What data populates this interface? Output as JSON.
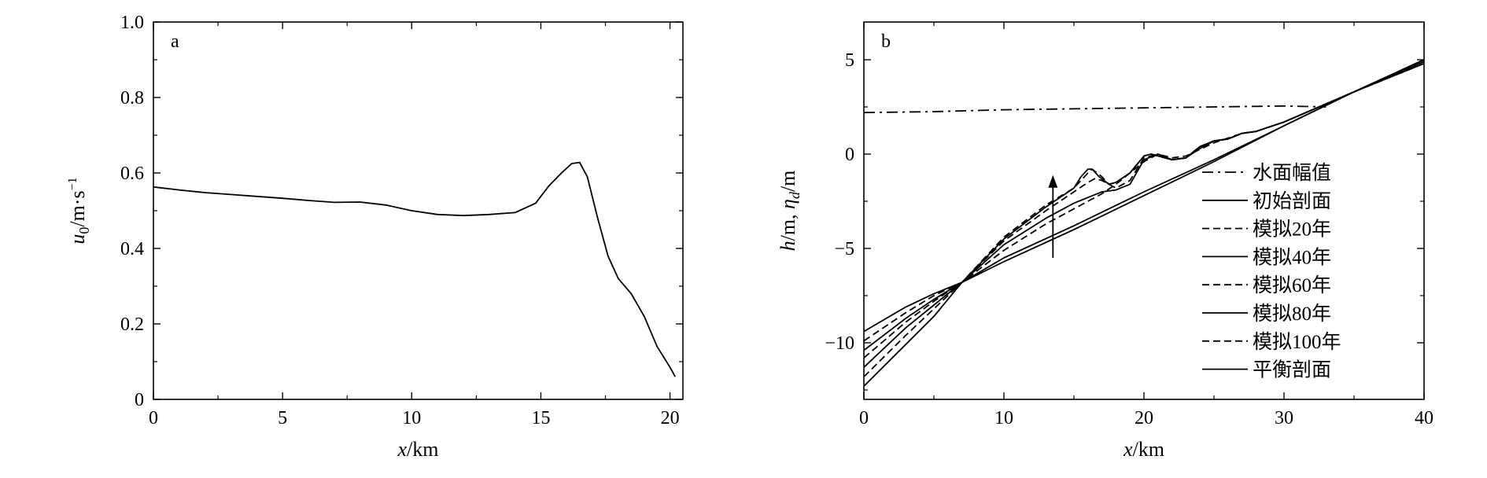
{
  "chart_data": [
    {
      "id": "a",
      "type": "line",
      "panel_label": "a",
      "xlabel": {
        "var": "x",
        "unit": "/km"
      },
      "ylabel": {
        "var": "u",
        "sub": "0",
        "unit": "/m·s",
        "sup": "−1"
      },
      "xlim": [
        0,
        20.5
      ],
      "ylim": [
        0,
        1.0
      ],
      "xticks": [
        0,
        5,
        10,
        15,
        20
      ],
      "xtick_labels": [
        "0",
        "5",
        "10",
        "15",
        "20"
      ],
      "yticks": [
        0,
        0.2,
        0.4,
        0.6,
        0.8,
        1.0
      ],
      "ytick_labels": [
        "0",
        "0.2",
        "0.4",
        "0.6",
        "0.8",
        "1.0"
      ],
      "series": [
        {
          "style": "solid",
          "x": [
            0,
            1,
            2,
            3,
            4,
            5,
            6,
            7,
            8,
            9,
            10,
            11,
            12,
            13,
            14,
            14.8,
            15.3,
            15.8,
            16.2,
            16.5,
            16.8,
            17.2,
            17.6,
            18.0,
            18.5,
            19.0,
            19.5,
            20.0,
            20.2
          ],
          "y": [
            0.563,
            0.555,
            0.548,
            0.543,
            0.538,
            0.533,
            0.527,
            0.522,
            0.523,
            0.515,
            0.5,
            0.49,
            0.487,
            0.49,
            0.495,
            0.52,
            0.565,
            0.6,
            0.625,
            0.628,
            0.59,
            0.48,
            0.38,
            0.32,
            0.28,
            0.22,
            0.14,
            0.085,
            0.06
          ]
        }
      ]
    },
    {
      "id": "b",
      "type": "line",
      "panel_label": "b",
      "xlabel": {
        "var": "x",
        "unit": "/km"
      },
      "ylabel": {
        "var1": "h",
        "mid": "/m,  ",
        "var2": "η",
        "sub2": "d",
        "unit": "/m"
      },
      "xlim": [
        0,
        40
      ],
      "ylim": [
        -13,
        7
      ],
      "xticks": [
        0,
        10,
        20,
        30,
        40
      ],
      "xtick_labels": [
        "0",
        "10",
        "20",
        "30",
        "40"
      ],
      "yticks": [
        5,
        0,
        -5,
        -10
      ],
      "ytick_labels": [
        "5",
        "0",
        "−5",
        "−10"
      ],
      "arrow": {
        "x": 13.5,
        "y_from": -5.5,
        "y_to": -1.2
      },
      "series": [
        {
          "name": "水面幅值",
          "style": "dashdot",
          "x": [
            0,
            5,
            10,
            15,
            20,
            25,
            30,
            33
          ],
          "y": [
            2.2,
            2.25,
            2.35,
            2.4,
            2.45,
            2.5,
            2.55,
            2.5
          ]
        },
        {
          "name": "初始剖面",
          "style": "solid",
          "x": [
            0,
            5,
            7,
            10,
            15,
            20,
            25,
            30,
            35,
            40
          ],
          "y": [
            -12.3,
            -8.6,
            -6.8,
            -5.5,
            -3.8,
            -2.0,
            -0.3,
            1.5,
            3.3,
            5.0
          ]
        },
        {
          "name": "模拟20年",
          "style": "dashed",
          "x": [
            0,
            3,
            5,
            7,
            10,
            13,
            15,
            17,
            18,
            20,
            21,
            22,
            23,
            25,
            27,
            28,
            30,
            35,
            40
          ],
          "y": [
            -11.8,
            -9.6,
            -8.2,
            -6.8,
            -5.1,
            -3.7,
            -2.9,
            -2.1,
            -1.6,
            -0.4,
            0.0,
            -0.2,
            -0.1,
            0.6,
            1.1,
            1.2,
            1.7,
            3.3,
            5.0
          ]
        },
        {
          "name": "模拟40年",
          "style": "solid",
          "x": [
            0,
            3,
            5,
            7,
            10,
            13,
            15,
            16,
            17,
            18,
            19,
            20,
            21,
            22,
            23,
            24,
            25,
            26,
            27,
            28,
            30,
            35,
            40
          ],
          "y": [
            -11.3,
            -9.2,
            -8.0,
            -6.8,
            -4.8,
            -3.4,
            -2.6,
            -2.3,
            -2.0,
            -1.9,
            -1.6,
            -0.3,
            0.0,
            -0.3,
            -0.2,
            0.3,
            0.7,
            0.8,
            1.1,
            1.2,
            1.7,
            3.3,
            5.0
          ]
        },
        {
          "name": "模拟60年",
          "style": "dashed",
          "x": [
            0,
            3,
            5,
            7,
            10,
            13,
            15,
            16,
            16.5,
            17,
            17.5,
            18,
            19,
            20,
            21,
            22,
            23,
            24,
            25,
            26,
            27,
            28,
            30,
            35,
            40
          ],
          "y": [
            -10.8,
            -8.9,
            -7.8,
            -6.8,
            -4.6,
            -3.0,
            -2.0,
            -1.5,
            -1.3,
            -1.4,
            -1.6,
            -1.8,
            -1.4,
            -0.2,
            0.0,
            -0.3,
            -0.2,
            0.4,
            0.7,
            0.8,
            1.1,
            1.2,
            1.7,
            3.3,
            4.9
          ]
        },
        {
          "name": "模拟80年",
          "style": "solid",
          "x": [
            0,
            3,
            5,
            7,
            10,
            13,
            14,
            15,
            15.5,
            16,
            16.3,
            16.8,
            17.5,
            18,
            19,
            20,
            20.5,
            21,
            22,
            23,
            24,
            25,
            26,
            27,
            28,
            30,
            35,
            40
          ],
          "y": [
            -10.4,
            -8.7,
            -7.7,
            -6.8,
            -4.5,
            -2.8,
            -2.3,
            -1.8,
            -1.2,
            -0.8,
            -0.8,
            -1.2,
            -1.6,
            -1.5,
            -1.0,
            -0.1,
            0.0,
            -0.1,
            -0.3,
            -0.2,
            0.4,
            0.7,
            0.8,
            1.1,
            1.2,
            1.7,
            3.3,
            4.8
          ]
        },
        {
          "name": "模拟100年",
          "style": "dashed",
          "x": [
            0,
            3,
            5,
            7,
            10,
            13,
            15,
            16,
            16.3,
            17,
            17.5,
            18,
            19,
            20,
            20.5,
            21,
            22,
            23,
            24,
            25,
            26,
            27,
            28,
            30,
            35,
            40
          ],
          "y": [
            -9.9,
            -8.4,
            -7.5,
            -6.8,
            -4.4,
            -2.7,
            -1.8,
            -1.0,
            -0.8,
            -1.2,
            -1.6,
            -1.5,
            -1.0,
            -0.1,
            0.0,
            -0.1,
            -0.3,
            -0.2,
            0.4,
            0.7,
            0.8,
            1.1,
            1.2,
            1.7,
            3.3,
            4.8
          ]
        },
        {
          "name": "平衡剖面",
          "style": "solid",
          "x": [
            0,
            3,
            5,
            7,
            10,
            15,
            20,
            25,
            30,
            35,
            40
          ],
          "y": [
            -9.4,
            -8.1,
            -7.4,
            -6.8,
            -5.7,
            -4.0,
            -2.2,
            -0.4,
            1.5,
            3.3,
            4.9
          ]
        }
      ]
    }
  ]
}
